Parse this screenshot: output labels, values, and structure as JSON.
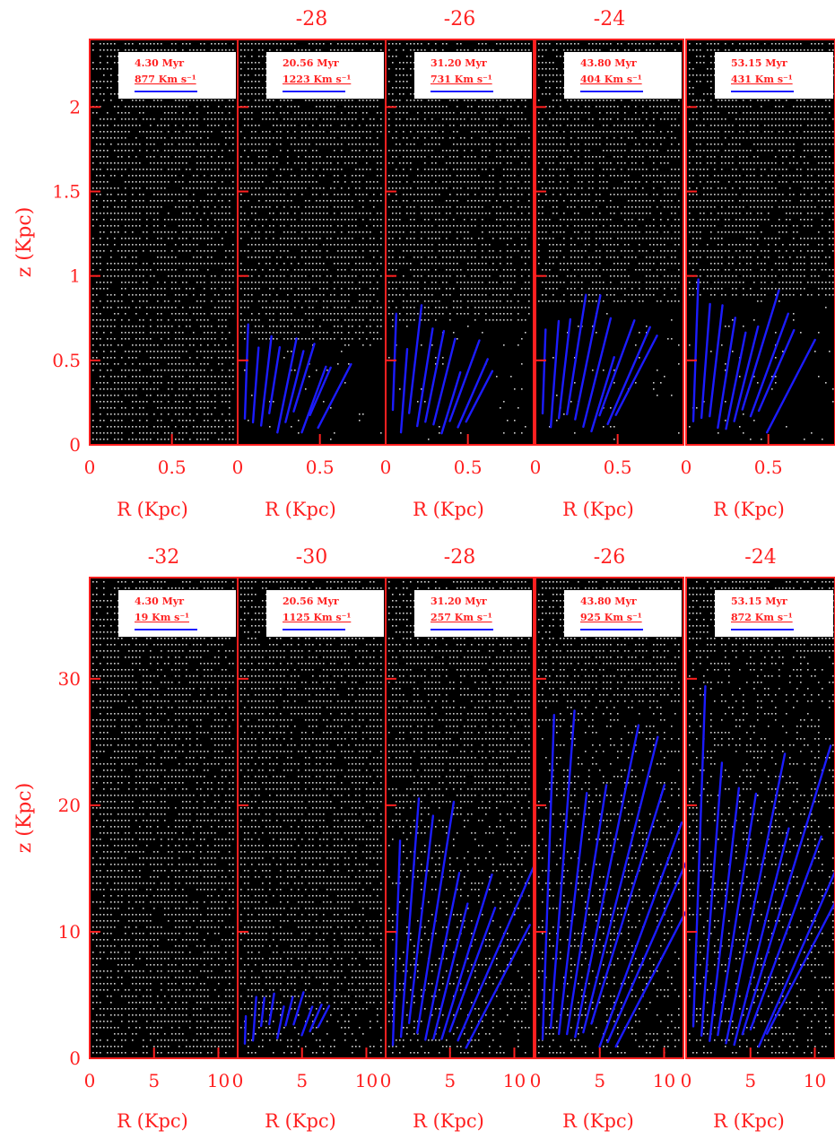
{
  "chart_data": [
    {
      "type": "scatter",
      "subtype": "multi-panel velocity field",
      "panel_titles": [
        "",
        "-28",
        "-26",
        "-24"
      ],
      "times": [
        "4.30 Myr",
        "20.56 Myr",
        "31.20 Myr",
        "43.80 Myr",
        "53.15 Myr"
      ],
      "velocity_labels": [
        "877 Km s⁻¹",
        "1223 Km s⁻¹",
        "731 Km s⁻¹",
        "404 Km s⁻¹",
        "431 Km s⁻¹"
      ],
      "xlabel": "R (Kpc)",
      "ylabel": "z (Kpc)",
      "xlim": [
        0,
        0.9
      ],
      "ylim": [
        0,
        2.4
      ],
      "xticks": [
        0,
        0.5
      ],
      "xtick_labels": [
        "0",
        "0.5"
      ],
      "yticks": [
        0,
        0.5,
        1,
        1.5,
        2
      ],
      "ytick_labels": [
        "0",
        "0.5",
        "1",
        "1.5",
        "2"
      ],
      "fronts": [
        0.0,
        0.62,
        0.72,
        0.82,
        0.86
      ],
      "colors": {
        "frame": "#ff2020",
        "background": "#000000",
        "density": "#d0d0d0",
        "vectors": "#1c1cff"
      }
    },
    {
      "type": "scatter",
      "subtype": "multi-panel velocity field",
      "panel_titles": [
        "-32",
        "-30",
        "-28",
        "-26",
        "-24"
      ],
      "times": [
        "4.30 Myr",
        "20.56 Myr",
        "31.20 Myr",
        "43.80 Myr",
        "53.15 Myr"
      ],
      "velocity_labels": [
        "19 Km s⁻¹",
        "1125 Km s⁻¹",
        "257 Km s⁻¹",
        "925 Km s⁻¹",
        "872 Km s⁻¹"
      ],
      "xlabel": "R (Kpc)",
      "ylabel": "z (Kpc)",
      "xlim": [
        0,
        11.5
      ],
      "ylim": [
        0,
        38
      ],
      "xticks": [
        0,
        5,
        10
      ],
      "xtick_labels": [
        "0",
        "5",
        "10"
      ],
      "yticks": [
        0,
        10,
        20,
        30
      ],
      "ytick_labels": [
        "0",
        "10",
        "20",
        "30"
      ],
      "fronts": [
        0.0,
        3.5,
        20,
        28,
        32
      ],
      "colors": {
        "frame": "#ff2020",
        "background": "#000000",
        "density": "#d0d0d0",
        "vectors": "#1c1cff"
      }
    }
  ]
}
